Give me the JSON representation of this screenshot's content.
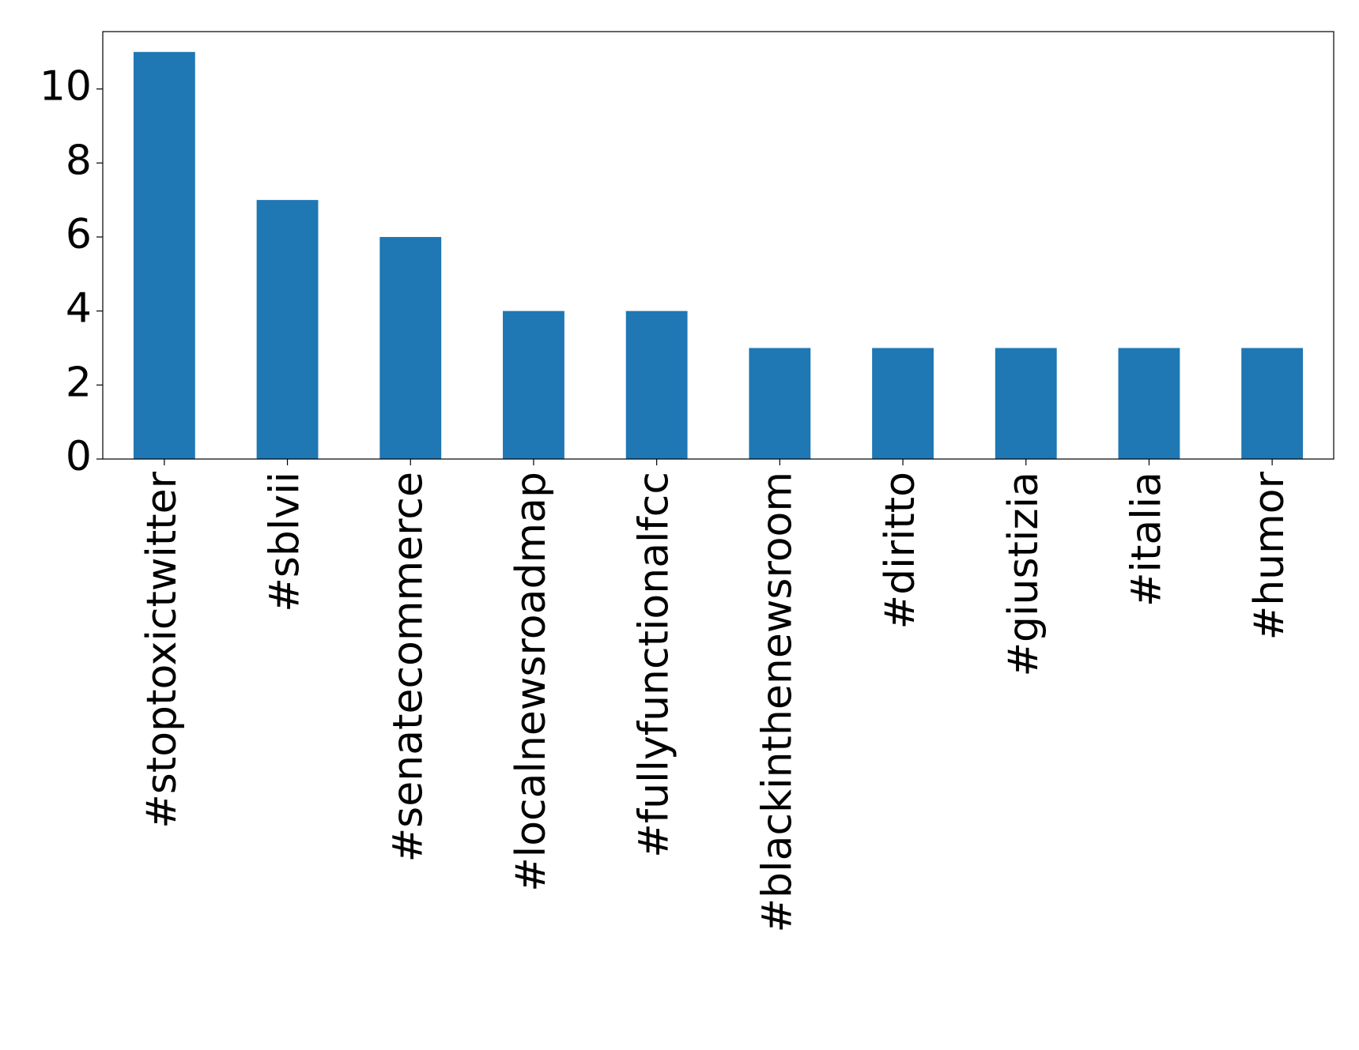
{
  "chart_data": {
    "type": "bar",
    "categories": [
      "#stoptoxictwitter",
      "#sblvii",
      "#senatecommerce",
      "#localnewsroadmap",
      "#fullyfunctionalfcc",
      "#blackinthenewsroom",
      "#diritto",
      "#giustizia",
      "#italia",
      "#humor"
    ],
    "values": [
      11,
      7,
      6,
      4,
      4,
      3,
      3,
      3,
      3,
      3
    ],
    "color": "#1f77b4",
    "ylim": [
      0,
      11.55
    ],
    "yticks": [
      0,
      2,
      4,
      6,
      8,
      10
    ],
    "grid": false
  }
}
